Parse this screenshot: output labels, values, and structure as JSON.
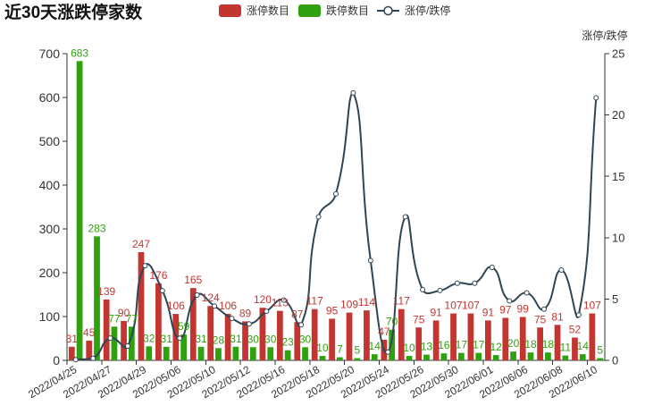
{
  "chart_data": {
    "type": "bar",
    "title": "近30天涨跌停家数",
    "categories": [
      "2022/04/25",
      "",
      "2022/04/27",
      "",
      "2022/04/29",
      "",
      "2022/05/06",
      "",
      "2022/05/10",
      "",
      "2022/05/12",
      "",
      "2022/05/16",
      "",
      "2022/05/18",
      "",
      "2022/05/20",
      "",
      "2022/05/24",
      "",
      "2022/05/26",
      "",
      "2022/05/30",
      "",
      "2022/06/01",
      "",
      "2022/06/06",
      "",
      "2022/06/08",
      "",
      "2022/06/10"
    ],
    "series": [
      {
        "name": "涨停数目",
        "type": "bar",
        "secondary_y": false,
        "color": "#c23531",
        "data_labels": true,
        "values": [
          31,
          45,
          139,
          90,
          247,
          176,
          106,
          165,
          124,
          106,
          89,
          120,
          113,
          87,
          117,
          95,
          109,
          114,
          47,
          117,
          75,
          91,
          107,
          107,
          91,
          97,
          99,
          75,
          81,
          52,
          107
        ]
      },
      {
        "name": "跌停数目",
        "type": "bar",
        "secondary_y": false,
        "color": "#2fa10f",
        "data_labels": true,
        "values": [
          683,
          283,
          77,
          77,
          32,
          31,
          59,
          31,
          28,
          31,
          30,
          30,
          23,
          30,
          10,
          7,
          5,
          14,
          70,
          10,
          13,
          16,
          17,
          17,
          12,
          20,
          18,
          18,
          11,
          14,
          5
        ]
      },
      {
        "name": "涨停/跌停",
        "type": "line",
        "secondary_y": true,
        "color": "#2f4554",
        "smooth": true,
        "marker": "empty-circle",
        "data_labels": false,
        "values": [
          0.05,
          0.16,
          1.81,
          1.17,
          7.72,
          5.68,
          1.8,
          5.32,
          4.43,
          3.42,
          2.97,
          4.0,
          4.91,
          2.9,
          11.7,
          13.57,
          21.8,
          8.14,
          0.67,
          11.7,
          5.77,
          5.69,
          6.29,
          6.29,
          7.58,
          4.85,
          5.5,
          4.17,
          7.36,
          3.71,
          21.4
        ]
      }
    ],
    "ylim": [
      0,
      700
    ],
    "yticks": [
      0,
      100,
      200,
      300,
      400,
      500,
      600,
      700
    ],
    "y2label": "涨停/跌停",
    "y2lim": [
      0,
      25
    ],
    "y2ticks": [
      0,
      5,
      10,
      15,
      20,
      25
    ],
    "grid": false,
    "legend_position": "top-center"
  }
}
